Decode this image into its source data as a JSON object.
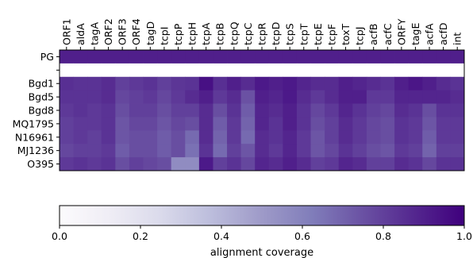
{
  "chart_data": {
    "type": "heatmap",
    "title": "",
    "columns": [
      "ORF1",
      "aldA",
      "tagA",
      "ORF2",
      "ORF3",
      "ORF4",
      "tagD",
      "tcpI",
      "tcpP",
      "tcpH",
      "tcpA",
      "tcpB",
      "tcpQ",
      "tcpC",
      "tcpR",
      "tcpD",
      "tcpS",
      "tcpT",
      "tcpE",
      "tcpF",
      "toxT",
      "tcpJ",
      "acfB",
      "acfC",
      "ORFY",
      "tagE",
      "acfA",
      "acfD",
      "int"
    ],
    "rows": [
      "PG",
      "",
      "Bgd1",
      "Bgd5",
      "Bgd8",
      "MQ1795",
      "N16961",
      "MJ1236",
      "O395"
    ],
    "values": [
      [
        0.9,
        0.9,
        0.9,
        0.9,
        0.9,
        0.9,
        0.9,
        0.9,
        0.9,
        0.9,
        0.9,
        0.9,
        0.9,
        0.9,
        0.9,
        0.9,
        0.9,
        0.9,
        0.9,
        0.9,
        0.9,
        0.9,
        0.9,
        0.9,
        0.9,
        0.9,
        0.9,
        0.9,
        0.9
      ],
      [
        null,
        null,
        null,
        null,
        null,
        null,
        null,
        null,
        null,
        null,
        null,
        null,
        null,
        null,
        null,
        null,
        null,
        null,
        null,
        null,
        null,
        null,
        null,
        null,
        null,
        null,
        null,
        null,
        null
      ],
      [
        0.85,
        0.84,
        0.84,
        0.86,
        0.8,
        0.82,
        0.84,
        0.8,
        0.83,
        0.84,
        0.95,
        0.85,
        0.9,
        0.86,
        0.92,
        0.9,
        0.92,
        0.88,
        0.86,
        0.86,
        0.9,
        0.88,
        0.86,
        0.84,
        0.9,
        0.93,
        0.9,
        0.86,
        0.84
      ],
      [
        0.84,
        0.84,
        0.84,
        0.86,
        0.78,
        0.8,
        0.82,
        0.78,
        0.82,
        0.86,
        0.9,
        0.82,
        0.86,
        0.75,
        0.9,
        0.88,
        0.92,
        0.86,
        0.82,
        0.86,
        0.9,
        0.9,
        0.82,
        0.82,
        0.88,
        0.88,
        0.88,
        0.88,
        0.86
      ],
      [
        0.82,
        0.84,
        0.82,
        0.84,
        0.76,
        0.8,
        0.8,
        0.76,
        0.8,
        0.8,
        0.86,
        0.76,
        0.84,
        0.72,
        0.88,
        0.86,
        0.9,
        0.84,
        0.78,
        0.82,
        0.88,
        0.84,
        0.8,
        0.78,
        0.86,
        0.84,
        0.76,
        0.84,
        0.84
      ],
      [
        0.8,
        0.82,
        0.82,
        0.84,
        0.74,
        0.78,
        0.78,
        0.74,
        0.78,
        0.76,
        0.86,
        0.72,
        0.82,
        0.7,
        0.88,
        0.84,
        0.9,
        0.84,
        0.76,
        0.8,
        0.86,
        0.82,
        0.78,
        0.76,
        0.84,
        0.82,
        0.74,
        0.82,
        0.82
      ],
      [
        0.8,
        0.82,
        0.8,
        0.84,
        0.74,
        0.76,
        0.76,
        0.72,
        0.76,
        0.68,
        0.86,
        0.7,
        0.82,
        0.68,
        0.86,
        0.84,
        0.88,
        0.82,
        0.74,
        0.8,
        0.86,
        0.82,
        0.78,
        0.76,
        0.84,
        0.82,
        0.72,
        0.82,
        0.82
      ],
      [
        0.78,
        0.8,
        0.8,
        0.82,
        0.72,
        0.76,
        0.76,
        0.72,
        0.76,
        0.66,
        0.84,
        0.68,
        0.8,
        0.74,
        0.86,
        0.82,
        0.88,
        0.82,
        0.74,
        0.78,
        0.84,
        0.8,
        0.76,
        0.74,
        0.82,
        0.8,
        0.7,
        0.8,
        0.8
      ],
      [
        0.82,
        0.84,
        0.82,
        0.84,
        0.76,
        0.8,
        0.78,
        0.76,
        0.56,
        0.56,
        0.92,
        0.8,
        0.84,
        0.78,
        0.88,
        0.86,
        0.9,
        0.86,
        0.8,
        0.82,
        0.88,
        0.86,
        0.8,
        0.8,
        0.86,
        0.84,
        0.78,
        0.84,
        0.84
      ]
    ],
    "colorbar": {
      "label": "alignment coverage",
      "ticks": [
        "0.0",
        "0.2",
        "0.4",
        "0.6",
        "0.8",
        "1.0"
      ],
      "range": [
        0,
        1
      ],
      "colors": [
        "#fcfbfd",
        "#efedf5",
        "#dadaeb",
        "#bcbddc",
        "#9e9ac8",
        "#807dba",
        "#6a51a3",
        "#54278f",
        "#3f007d"
      ]
    }
  }
}
